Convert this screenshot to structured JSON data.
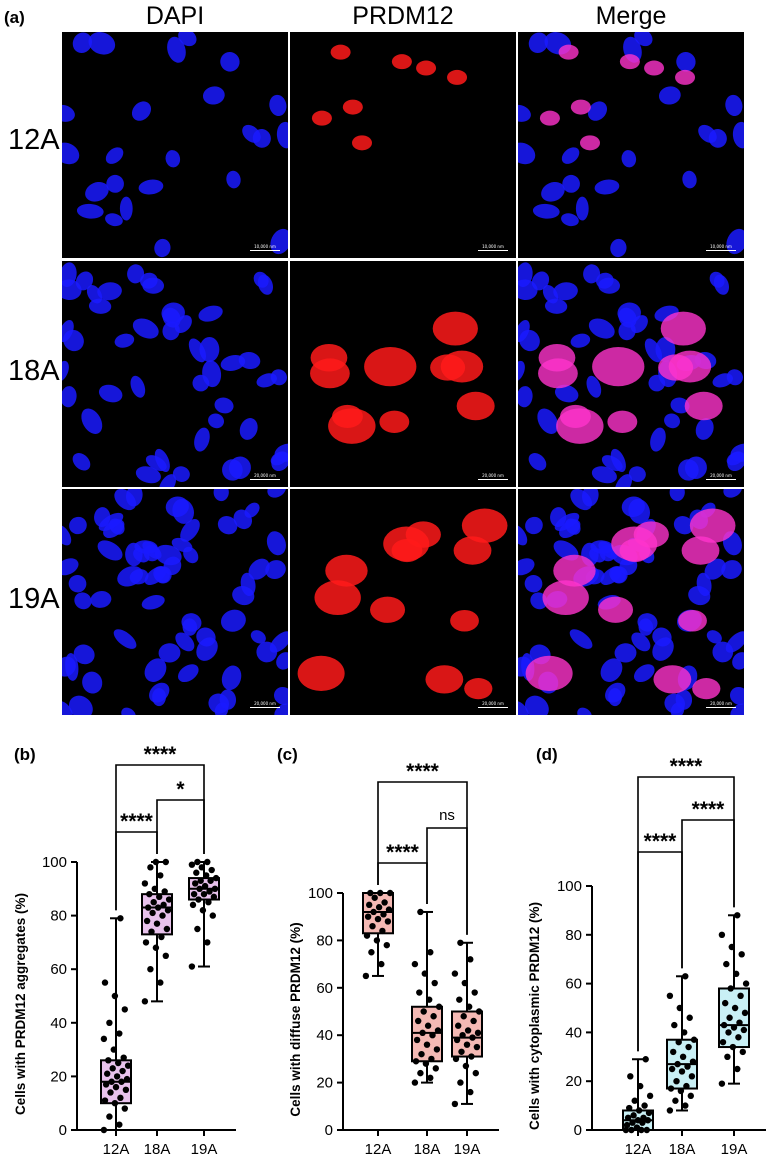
{
  "figure": {
    "panel_a_label": "(a)",
    "columns": [
      "DAPI",
      "PRDM12",
      "Merge"
    ],
    "rows": [
      "12A",
      "18A",
      "19A"
    ],
    "scalebar_labels": [
      "10,000 nm",
      "20,000 nm",
      "20,000 nm"
    ],
    "channel_colors": {
      "dapi": "#1a1aff",
      "prdm12": "#ff1a1a",
      "merge": "#ff33cc"
    }
  },
  "chart_data": [
    {
      "panel": "(b)",
      "type": "box",
      "categories": [
        "12A",
        "18A",
        "19A"
      ],
      "ylabel": "Cells with PRDM12 aggregates (%)",
      "ylim": [
        0,
        100
      ],
      "yticks": [
        0,
        20,
        40,
        60,
        80,
        100
      ],
      "box_color": "#e8c2ec",
      "boxes": [
        {
          "min": 0,
          "q1": 10,
          "median": 18,
          "q3": 26,
          "max": 79
        },
        {
          "min": 48,
          "q1": 73,
          "median": 83,
          "q3": 88,
          "max": 100
        },
        {
          "min": 61,
          "q1": 86,
          "median": 90,
          "q3": 94,
          "max": 100
        }
      ],
      "points": [
        [
          0,
          2,
          5,
          8,
          10,
          11,
          12,
          14,
          15,
          16,
          17,
          18,
          18,
          19,
          20,
          21,
          22,
          23,
          24,
          25,
          26,
          27,
          30,
          34,
          36,
          40,
          45,
          50,
          55,
          79
        ],
        [
          48,
          55,
          60,
          65,
          68,
          70,
          72,
          74,
          75,
          77,
          78,
          80,
          81,
          82,
          83,
          83,
          84,
          85,
          86,
          87,
          88,
          89,
          90,
          92,
          95,
          98,
          100,
          100
        ],
        [
          61,
          70,
          75,
          80,
          82,
          84,
          85,
          86,
          87,
          88,
          88,
          89,
          90,
          90,
          91,
          92,
          93,
          93,
          94,
          95,
          96,
          97,
          98,
          99,
          100,
          100
        ]
      ],
      "comparisons": [
        {
          "from": 0,
          "to": 1,
          "label": "****"
        },
        {
          "from": 1,
          "to": 2,
          "label": "*"
        },
        {
          "from": 0,
          "to": 2,
          "label": "****"
        }
      ]
    },
    {
      "panel": "(c)",
      "type": "box",
      "categories": [
        "12A",
        "18A",
        "19A"
      ],
      "ylabel": "Cells with diffuse PRDM12 (%)",
      "ylim": [
        0,
        100
      ],
      "yticks": [
        0,
        20,
        40,
        60,
        80,
        100
      ],
      "box_color": "#f4b9b4",
      "boxes": [
        {
          "min": 65,
          "q1": 83,
          "median": 92,
          "q3": 100,
          "max": 100
        },
        {
          "min": 20,
          "q1": 29,
          "median": 41,
          "q3": 52,
          "max": 92
        },
        {
          "min": 11,
          "q1": 31,
          "median": 39,
          "q3": 50,
          "max": 79
        }
      ],
      "points": [
        [
          65,
          70,
          75,
          78,
          80,
          82,
          84,
          86,
          88,
          89,
          90,
          91,
          92,
          93,
          94,
          95,
          96,
          98,
          100,
          100,
          100
        ],
        [
          20,
          22,
          24,
          26,
          28,
          29,
          30,
          32,
          34,
          36,
          38,
          40,
          41,
          42,
          44,
          46,
          48,
          50,
          52,
          55,
          58,
          62,
          66,
          70,
          75,
          92
        ],
        [
          11,
          16,
          20,
          24,
          27,
          30,
          31,
          33,
          35,
          36,
          38,
          39,
          40,
          41,
          42,
          44,
          46,
          48,
          50,
          52,
          55,
          58,
          62,
          66,
          72,
          79
        ]
      ],
      "comparisons": [
        {
          "from": 0,
          "to": 1,
          "label": "****"
        },
        {
          "from": 1,
          "to": 2,
          "label": "ns"
        },
        {
          "from": 0,
          "to": 2,
          "label": "****"
        }
      ]
    },
    {
      "panel": "(d)",
      "type": "box",
      "categories": [
        "12A",
        "18A",
        "19A"
      ],
      "ylabel": "Cells with cytoplasmic PRDM12 (%)",
      "ylim": [
        0,
        100
      ],
      "yticks": [
        0,
        20,
        40,
        60,
        80,
        100
      ],
      "box_color": "#c9f0f5",
      "boxes": [
        {
          "min": 0,
          "q1": 0,
          "median": 4,
          "q3": 8,
          "max": 29
        },
        {
          "min": 8,
          "q1": 17,
          "median": 27,
          "q3": 37,
          "max": 63
        },
        {
          "min": 19,
          "q1": 34,
          "median": 43,
          "q3": 58,
          "max": 88
        }
      ],
      "points": [
        [
          0,
          0,
          0,
          0,
          1,
          2,
          3,
          3,
          4,
          4,
          5,
          5,
          6,
          7,
          8,
          9,
          10,
          12,
          14,
          18,
          22,
          29
        ],
        [
          8,
          10,
          12,
          14,
          16,
          17,
          18,
          20,
          22,
          24,
          25,
          26,
          27,
          28,
          30,
          32,
          34,
          36,
          37,
          40,
          43,
          46,
          50,
          55,
          63
        ],
        [
          19,
          25,
          30,
          32,
          34,
          36,
          38,
          40,
          41,
          42,
          43,
          44,
          46,
          48,
          50,
          52,
          55,
          58,
          60,
          64,
          68,
          72,
          75,
          80,
          88
        ]
      ],
      "comparisons": [
        {
          "from": 0,
          "to": 1,
          "label": "****"
        },
        {
          "from": 1,
          "to": 2,
          "label": "****"
        },
        {
          "from": 0,
          "to": 2,
          "label": "****"
        }
      ]
    }
  ]
}
